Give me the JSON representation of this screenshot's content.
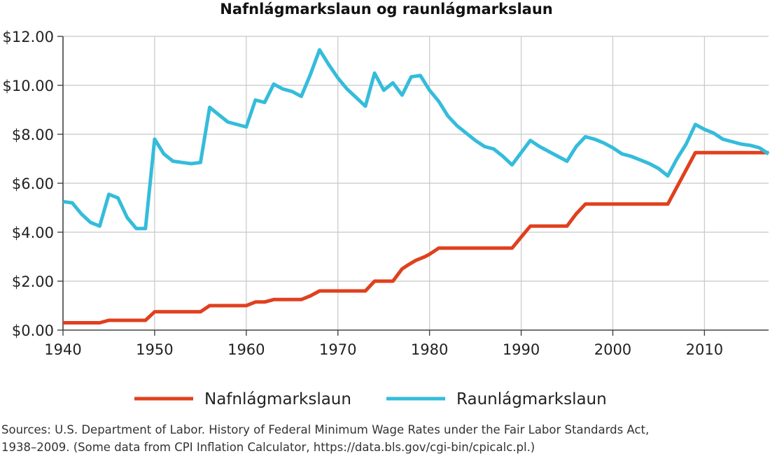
{
  "chart_data": {
    "type": "line",
    "title": "Nafnlágmarkslaun og raunlágmarkslaun",
    "xlabel": "",
    "ylabel": "",
    "xlim": [
      1940,
      2017
    ],
    "ylim": [
      0,
      12
    ],
    "grid": true,
    "legend_position": "bottom",
    "x_ticks": [
      {
        "value": 1940,
        "label": "1940"
      },
      {
        "value": 1950,
        "label": "1950"
      },
      {
        "value": 1960,
        "label": "1960"
      },
      {
        "value": 1970,
        "label": "1970"
      },
      {
        "value": 1980,
        "label": "1980"
      },
      {
        "value": 1990,
        "label": "1990"
      },
      {
        "value": 2000,
        "label": "2000"
      },
      {
        "value": 2010,
        "label": "2010"
      }
    ],
    "y_ticks": [
      {
        "value": 0,
        "label": "$0.00"
      },
      {
        "value": 2,
        "label": "$2.00"
      },
      {
        "value": 4,
        "label": "$4.00"
      },
      {
        "value": 6,
        "label": "$6.00"
      },
      {
        "value": 8,
        "label": "$8.00"
      },
      {
        "value": 10,
        "label": "$10.00"
      },
      {
        "value": 12,
        "label": "$12.00"
      }
    ],
    "series": [
      {
        "name": "Nafnlágmarkslaun",
        "color": "#e0401e",
        "points": [
          [
            1940,
            0.3
          ],
          [
            1944,
            0.3
          ],
          [
            1945,
            0.4
          ],
          [
            1949,
            0.4
          ],
          [
            1950,
            0.75
          ],
          [
            1955,
            0.75
          ],
          [
            1956,
            1.0
          ],
          [
            1960,
            1.0
          ],
          [
            1961,
            1.15
          ],
          [
            1962,
            1.15
          ],
          [
            1963,
            1.25
          ],
          [
            1966,
            1.25
          ],
          [
            1967,
            1.4
          ],
          [
            1968,
            1.6
          ],
          [
            1973,
            1.6
          ],
          [
            1974,
            2.0
          ],
          [
            1976,
            2.0
          ],
          [
            1976.6,
            2.3
          ],
          [
            1977,
            2.5
          ],
          [
            1977.6,
            2.65
          ],
          [
            1978.5,
            2.85
          ],
          [
            1979.5,
            3.0
          ],
          [
            1980,
            3.1
          ],
          [
            1980.6,
            3.25
          ],
          [
            1981,
            3.35
          ],
          [
            1989,
            3.35
          ],
          [
            1990,
            3.8
          ],
          [
            1991,
            4.25
          ],
          [
            1995,
            4.25
          ],
          [
            1996,
            4.75
          ],
          [
            1997,
            5.15
          ],
          [
            2006,
            5.15
          ],
          [
            2007,
            5.85
          ],
          [
            2008,
            6.55
          ],
          [
            2009,
            7.25
          ],
          [
            2017,
            7.25
          ]
        ]
      },
      {
        "name": "Raunlágmarkslaun",
        "color": "#35bcdb",
        "points": [
          [
            1940,
            5.25
          ],
          [
            1941,
            5.2
          ],
          [
            1942,
            4.75
          ],
          [
            1943,
            4.4
          ],
          [
            1944,
            4.25
          ],
          [
            1945,
            5.55
          ],
          [
            1946,
            5.4
          ],
          [
            1947,
            4.6
          ],
          [
            1948,
            4.15
          ],
          [
            1949,
            4.15
          ],
          [
            1950,
            7.8
          ],
          [
            1951,
            7.2
          ],
          [
            1952,
            6.9
          ],
          [
            1953,
            6.85
          ],
          [
            1954,
            6.8
          ],
          [
            1955,
            6.85
          ],
          [
            1956,
            9.1
          ],
          [
            1957,
            8.8
          ],
          [
            1958,
            8.5
          ],
          [
            1959,
            8.4
          ],
          [
            1960,
            8.3
          ],
          [
            1961,
            9.4
          ],
          [
            1962,
            9.3
          ],
          [
            1963,
            10.05
          ],
          [
            1964,
            9.85
          ],
          [
            1965,
            9.75
          ],
          [
            1966,
            9.55
          ],
          [
            1967,
            10.45
          ],
          [
            1968,
            11.45
          ],
          [
            1969,
            10.85
          ],
          [
            1970,
            10.3
          ],
          [
            1971,
            9.85
          ],
          [
            1972,
            9.5
          ],
          [
            1973,
            9.15
          ],
          [
            1974,
            10.5
          ],
          [
            1975,
            9.8
          ],
          [
            1976,
            10.1
          ],
          [
            1977,
            9.6
          ],
          [
            1978,
            10.35
          ],
          [
            1979,
            10.4
          ],
          [
            1980,
            9.8
          ],
          [
            1981,
            9.35
          ],
          [
            1982,
            8.75
          ],
          [
            1983,
            8.35
          ],
          [
            1984,
            8.05
          ],
          [
            1985,
            7.75
          ],
          [
            1986,
            7.5
          ],
          [
            1987,
            7.4
          ],
          [
            1988,
            7.1
          ],
          [
            1989,
            6.75
          ],
          [
            1990,
            7.25
          ],
          [
            1991,
            7.75
          ],
          [
            1992,
            7.5
          ],
          [
            1993,
            7.3
          ],
          [
            1994,
            7.1
          ],
          [
            1995,
            6.9
          ],
          [
            1996,
            7.5
          ],
          [
            1997,
            7.9
          ],
          [
            1998,
            7.8
          ],
          [
            1999,
            7.65
          ],
          [
            2000,
            7.45
          ],
          [
            2001,
            7.2
          ],
          [
            2002,
            7.1
          ],
          [
            2003,
            6.95
          ],
          [
            2004,
            6.8
          ],
          [
            2005,
            6.6
          ],
          [
            2006,
            6.3
          ],
          [
            2007,
            7.0
          ],
          [
            2008,
            7.6
          ],
          [
            2009,
            8.4
          ],
          [
            2010,
            8.2
          ],
          [
            2011,
            8.05
          ],
          [
            2012,
            7.8
          ],
          [
            2013,
            7.7
          ],
          [
            2014,
            7.6
          ],
          [
            2015,
            7.55
          ],
          [
            2016,
            7.45
          ],
          [
            2017,
            7.2
          ]
        ]
      }
    ]
  },
  "source": {
    "line1": "Sources: U.S. Department of Labor. History of Federal Minimum Wage Rates under the Fair Labor Standards Act,",
    "line2": "1938–2009. (Some data from CPI Inflation Calculator, https://data.bls.gov/cgi-bin/cpicalc.pl.)"
  }
}
